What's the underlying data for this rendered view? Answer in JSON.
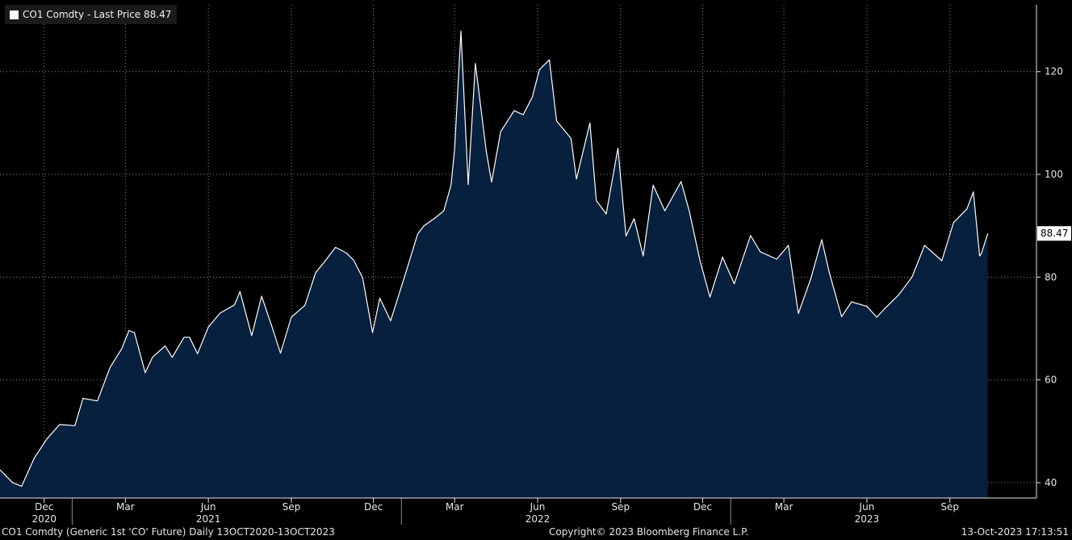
{
  "legend": {
    "ticker": "CO1 Comdty",
    "separator": "-",
    "field": "Last Price",
    "value": "88.47"
  },
  "footer": {
    "description": "CO1 Comdty (Generic 1st 'CO' Future)  Daily 13OCT2020-13OCT2023",
    "copyright": "Copyright© 2023 Bloomberg Finance L.P.",
    "timestamp": "13-Oct-2023 17:13:51"
  },
  "colors": {
    "background": "#000000",
    "area_fill": "#06203e",
    "line": "#ffffff",
    "grid": "#8a8a8a",
    "text": "#e6e6e6"
  },
  "chart_data": {
    "type": "area",
    "ylim": [
      37,
      133
    ],
    "yticks": [
      40,
      60,
      80,
      100,
      120
    ],
    "y_axis_side": "right",
    "grid": "dotted",
    "last_value_label": "88.47",
    "x_month_labels": [
      {
        "label": "Dec",
        "date": "2020-12-01"
      },
      {
        "label": "Mar",
        "date": "2021-03-01"
      },
      {
        "label": "Jun",
        "date": "2021-06-01"
      },
      {
        "label": "Sep",
        "date": "2021-09-01"
      },
      {
        "label": "Dec",
        "date": "2021-12-01"
      },
      {
        "label": "Mar",
        "date": "2022-03-01"
      },
      {
        "label": "Jun",
        "date": "2022-06-01"
      },
      {
        "label": "Sep",
        "date": "2022-09-01"
      },
      {
        "label": "Dec",
        "date": "2022-12-01"
      },
      {
        "label": "Mar",
        "date": "2023-03-01"
      },
      {
        "label": "Jun",
        "date": "2023-06-01"
      },
      {
        "label": "Sep",
        "date": "2023-09-01"
      }
    ],
    "x_year_labels": [
      {
        "label": "2020",
        "date": "2020-12-01"
      },
      {
        "label": "2021",
        "date": "2021-06-01"
      },
      {
        "label": "2022",
        "date": "2022-06-01"
      },
      {
        "label": "2023",
        "date": "2023-06-01"
      }
    ],
    "x_range": [
      "2020-10-13",
      "2023-10-13"
    ],
    "series": [
      {
        "x": [
          "2020-10-13",
          "2020-10-27",
          "2020-11-06",
          "2020-11-20",
          "2020-12-04",
          "2020-12-18",
          "2021-01-04",
          "2021-01-13",
          "2021-01-29",
          "2021-02-12",
          "2021-02-25",
          "2021-03-05",
          "2021-03-11",
          "2021-03-23",
          "2021-03-31",
          "2021-04-14",
          "2021-04-22",
          "2021-05-05",
          "2021-05-11",
          "2021-05-20",
          "2021-06-01",
          "2021-06-14",
          "2021-06-30",
          "2021-07-06",
          "2021-07-19",
          "2021-07-30",
          "2021-08-10",
          "2021-08-20",
          "2021-09-01",
          "2021-09-16",
          "2021-09-28",
          "2021-10-06",
          "2021-10-20",
          "2021-11-01",
          "2021-11-09",
          "2021-11-19",
          "2021-11-30",
          "2021-12-08",
          "2021-12-20",
          "2022-01-05",
          "2022-01-19",
          "2022-01-26",
          "2022-02-08",
          "2022-02-17",
          "2022-02-25",
          "2022-03-01",
          "2022-03-08",
          "2022-03-16",
          "2022-03-24",
          "2022-04-05",
          "2022-04-11",
          "2022-04-21",
          "2022-05-06",
          "2022-05-16",
          "2022-05-26",
          "2022-06-03",
          "2022-06-14",
          "2022-06-22",
          "2022-07-08",
          "2022-07-14",
          "2022-07-29",
          "2022-08-05",
          "2022-08-16",
          "2022-08-29",
          "2022-09-07",
          "2022-09-16",
          "2022-09-26",
          "2022-10-07",
          "2022-10-20",
          "2022-11-07",
          "2022-11-16",
          "2022-11-28",
          "2022-12-09",
          "2022-12-23",
          "2023-01-05",
          "2023-01-23",
          "2023-02-03",
          "2023-02-21",
          "2023-03-06",
          "2023-03-17",
          "2023-03-31",
          "2023-04-12",
          "2023-04-20",
          "2023-05-04",
          "2023-05-15",
          "2023-06-01",
          "2023-06-12",
          "2023-06-22",
          "2023-07-06",
          "2023-07-21",
          "2023-08-04",
          "2023-08-23",
          "2023-09-05",
          "2023-09-20",
          "2023-09-27",
          "2023-10-04",
          "2023-10-06",
          "2023-10-13"
        ],
        "values": [
          42.5,
          40.0,
          39.3,
          44.8,
          48.5,
          51.3,
          51.1,
          56.4,
          55.9,
          62.4,
          66.1,
          69.6,
          69.2,
          61.4,
          64.4,
          66.6,
          64.4,
          68.3,
          68.3,
          65.1,
          70.3,
          73.0,
          74.6,
          77.2,
          68.6,
          76.3,
          70.6,
          65.2,
          72.2,
          74.5,
          80.9,
          82.6,
          85.8,
          84.7,
          83.3,
          79.9,
          69.2,
          75.9,
          71.5,
          80.4,
          88.4,
          90.0,
          91.6,
          92.9,
          97.9,
          104.9,
          127.9,
          98.0,
          121.6,
          104.6,
          98.5,
          108.3,
          112.4,
          111.6,
          115.0,
          120.4,
          122.3,
          110.4,
          107.0,
          99.1,
          110.0,
          94.9,
          92.3,
          105.1,
          88.0,
          91.4,
          84.1,
          97.9,
          92.9,
          98.6,
          92.9,
          83.2,
          76.1,
          83.9,
          78.7,
          88.1,
          84.9,
          83.5,
          86.2,
          72.9,
          79.8,
          87.3,
          81.1,
          72.3,
          75.2,
          74.3,
          72.2,
          74.1,
          76.5,
          80.0,
          86.2,
          83.2,
          90.6,
          93.3,
          96.6,
          84.1,
          84.6,
          88.5
        ]
      }
    ]
  }
}
